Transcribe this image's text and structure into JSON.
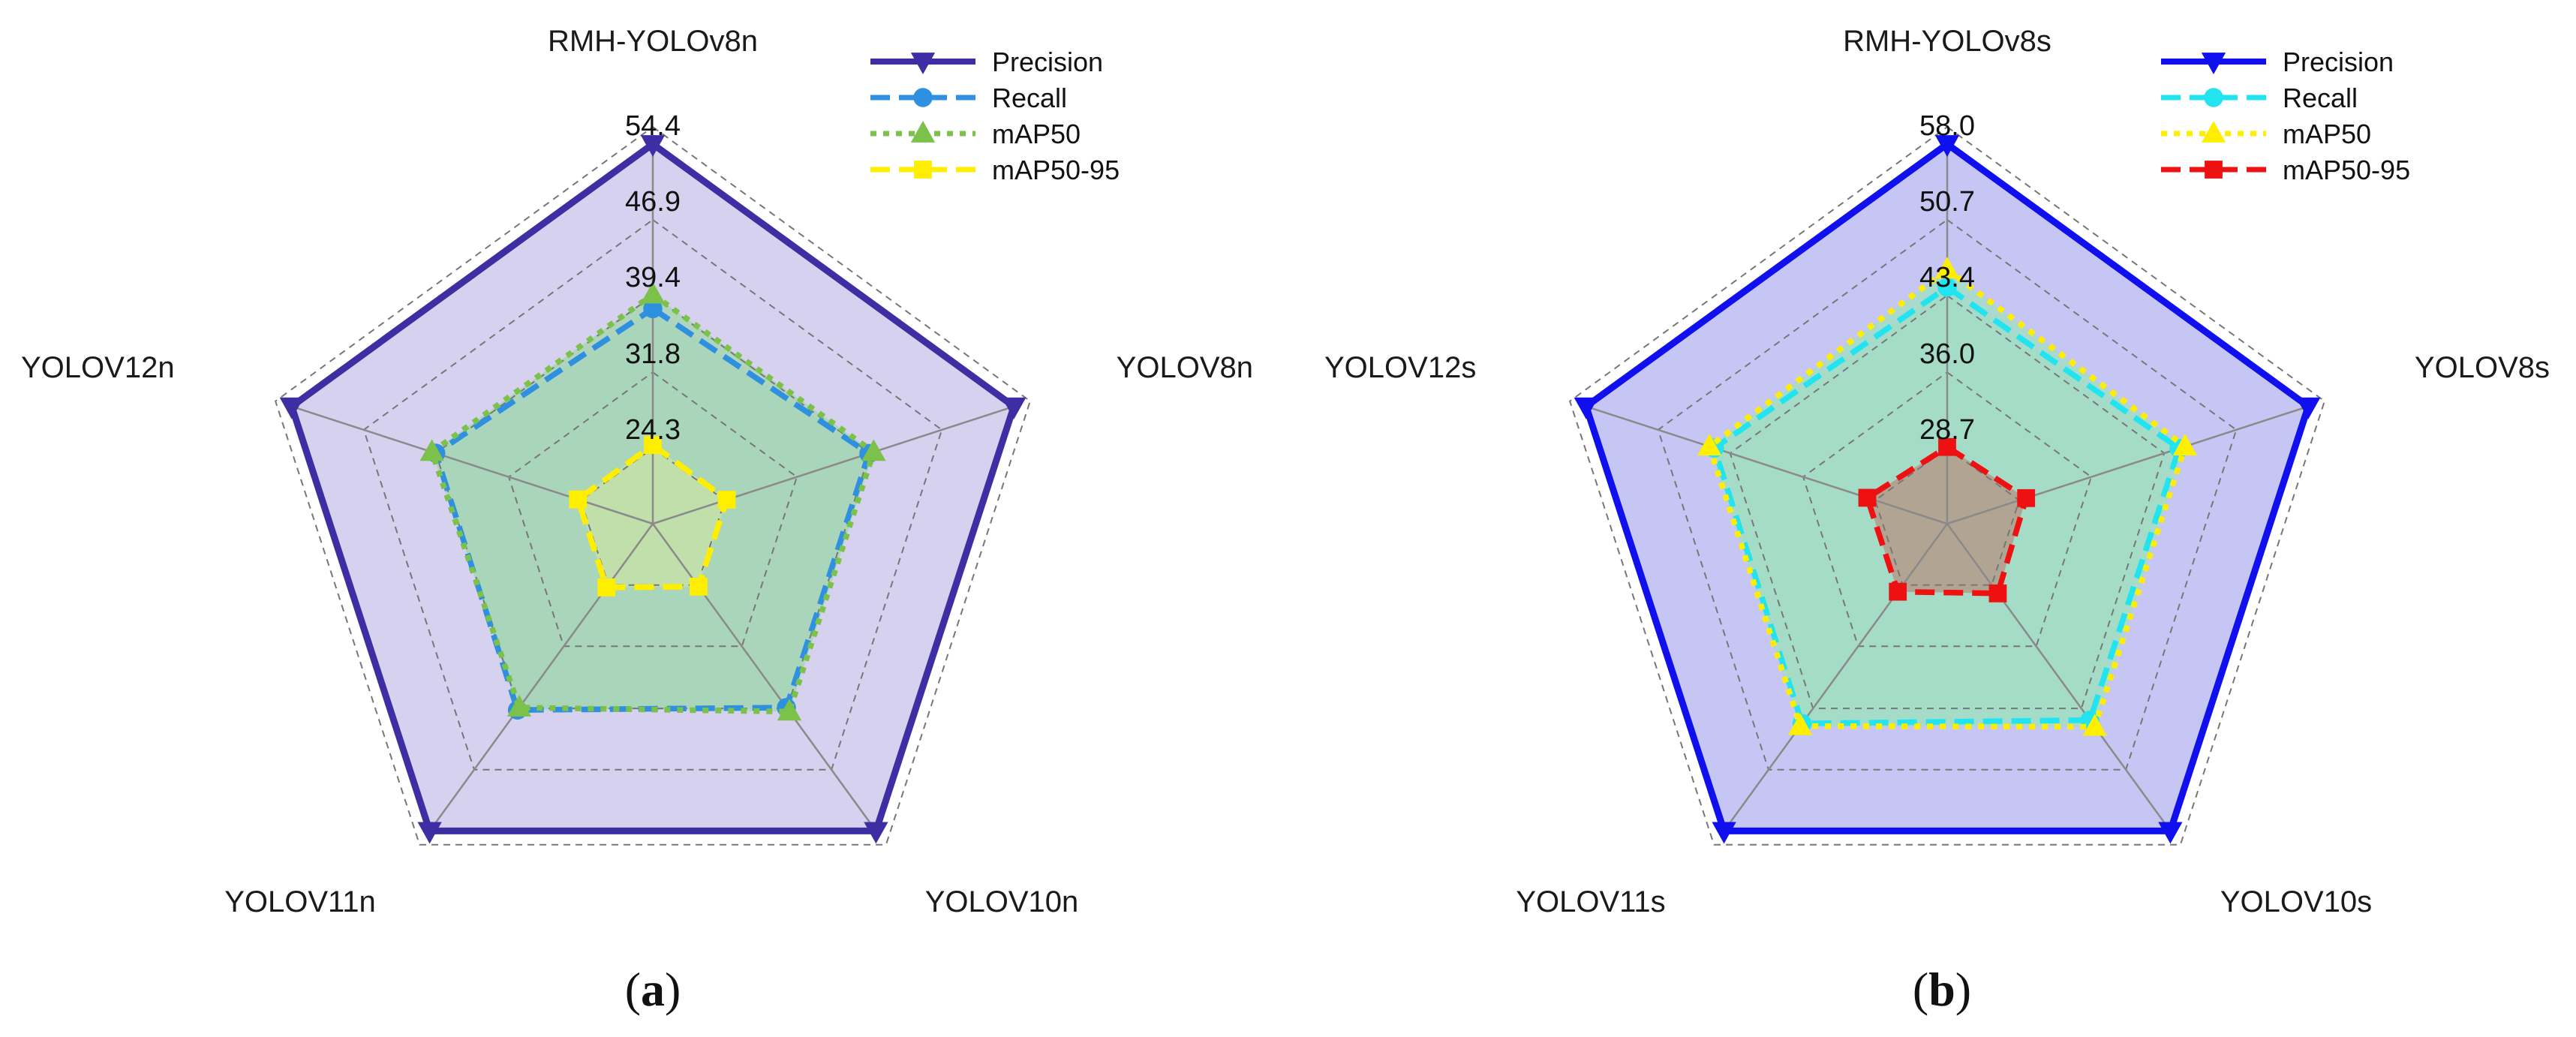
{
  "panels": [
    {
      "label_open": "(",
      "label_letter": "a",
      "label_close": ")"
    },
    {
      "label_open": "(",
      "label_letter": "b",
      "label_close": ")"
    }
  ],
  "chart_data": [
    {
      "type": "radar",
      "axes": [
        "RMH-YOLOv8n",
        "YOLOV8n",
        "YOLOV10n",
        "YOLOV11n",
        "YOLOV12n"
      ],
      "tick_labels": [
        "24.3",
        "31.8",
        "39.4",
        "46.9",
        "54.4"
      ],
      "range": [
        16.8,
        54.4
      ],
      "grid": true,
      "legend_position": "top-right",
      "series": [
        {
          "name": "Precision",
          "values": [
            54.4,
            54.4,
            54.4,
            54.4,
            54.4
          ],
          "color": "#3d2fa3",
          "fill": "#cfc9ec",
          "marker": "triangle-down",
          "dash": "solid"
        },
        {
          "name": "Recall",
          "values": [
            38.1,
            39.3,
            39.3,
            39.6,
            39.4
          ],
          "color": "#2f8fe0",
          "fill": "#9fd0dc",
          "marker": "circle",
          "dash": "dashed"
        },
        {
          "name": "mAP50",
          "values": [
            39.5,
            39.8,
            39.8,
            39.3,
            39.8
          ],
          "color": "#7cc24a",
          "fill": "#a9d6b4",
          "marker": "triangle-up",
          "dash": "dotted"
        },
        {
          "name": "mAP50-95",
          "values": [
            24.6,
            24.5,
            24.5,
            24.6,
            24.6
          ],
          "color": "#ffee00",
          "fill": "#c4e0a8",
          "marker": "square",
          "dash": "dashed"
        }
      ]
    },
    {
      "type": "radar",
      "axes": [
        "RMH-YOLOv8s",
        "YOLOV8s",
        "YOLOV10s",
        "YOLOV11s",
        "YOLOV12s"
      ],
      "tick_labels": [
        "28.7",
        "36.0",
        "43.4",
        "50.7",
        "58.0"
      ],
      "range": [
        21.4,
        58.0
      ],
      "grid": true,
      "legend_position": "top-right",
      "series": [
        {
          "name": "Precision",
          "values": [
            58.0,
            58.0,
            58.0,
            58.0,
            58.0
          ],
          "color": "#1010ee",
          "fill": "#bcbcf2",
          "marker": "triangle-down",
          "dash": "solid"
        },
        {
          "name": "Recall",
          "values": [
            44.2,
            44.9,
            44.8,
            45.2,
            45.0
          ],
          "color": "#22e3f0",
          "fill": "#a5dcc5",
          "marker": "circle",
          "dash": "dashed"
        },
        {
          "name": "mAP50",
          "values": [
            45.9,
            45.5,
            45.6,
            45.5,
            45.5
          ],
          "color": "#ffee00",
          "fill": "#a5dcc5",
          "marker": "triangle-up",
          "dash": "dotted"
        },
        {
          "name": "mAP50-95",
          "values": [
            28.8,
            29.4,
            29.7,
            29.5,
            29.5
          ],
          "color": "#ee1111",
          "fill": "#b49a88",
          "marker": "square",
          "dash": "dashed"
        }
      ]
    }
  ]
}
